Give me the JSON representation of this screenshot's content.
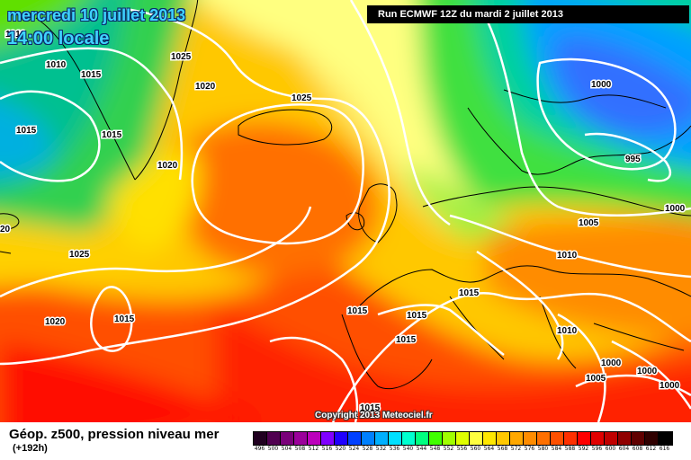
{
  "map_title": {
    "date": "mercredi 10 juillet 2013",
    "time": "14:00 locale"
  },
  "run_info": "Run ECMWF 12Z du mardi 2 juillet 2013",
  "copyright": "Copyright 2013 Meteociel.fr",
  "product": "Géop. z500, pression niveau mer",
  "lead_time": "(+192h)",
  "scale": {
    "labels": [
      "496",
      "500",
      "504",
      "508",
      "512",
      "516",
      "520",
      "524",
      "528",
      "532",
      "536",
      "540",
      "544",
      "548",
      "552",
      "556",
      "560",
      "564",
      "568",
      "572",
      "576",
      "580",
      "584",
      "588",
      "592",
      "596",
      "600",
      "604",
      "608",
      "612",
      "616"
    ],
    "colors": [
      "#200020",
      "#500050",
      "#7a007a",
      "#9b009b",
      "#bc00bc",
      "#8000ff",
      "#2000ff",
      "#0040ff",
      "#0080ff",
      "#00b0ff",
      "#00e0ff",
      "#00ffd0",
      "#00ff80",
      "#40ff00",
      "#a0ff00",
      "#e0ff00",
      "#ffff40",
      "#ffe800",
      "#ffc800",
      "#ffa800",
      "#ff8c00",
      "#ff7000",
      "#ff5000",
      "#ff3000",
      "#ff0000",
      "#e00000",
      "#c00000",
      "#900000",
      "#600000",
      "#300000",
      "#000000"
    ]
  },
  "isobars": [
    {
      "value": "1010",
      "pos": "near Greenland west coast"
    },
    {
      "value": "1015",
      "pos": "south Greenland"
    },
    {
      "value": "1015",
      "pos": "Labrador Sea"
    },
    {
      "value": "1015",
      "pos": "Denmark Strait"
    },
    {
      "value": "1025",
      "pos": "north of Iceland"
    },
    {
      "value": "1020",
      "pos": "northwest of Iceland"
    },
    {
      "value": "1025",
      "pos": "Iceland"
    },
    {
      "value": "1020",
      "pos": "south of Greenland"
    },
    {
      "value": "1025",
      "pos": "mid Atlantic"
    },
    {
      "value": "1020",
      "pos": "western Atlantic"
    },
    {
      "value": "1015",
      "pos": "Azores"
    },
    {
      "value": "1015",
      "pos": "Iberia north"
    },
    {
      "value": "1015",
      "pos": "France"
    },
    {
      "value": "1015",
      "pos": "Iberia"
    },
    {
      "value": "1015",
      "pos": "Alps"
    },
    {
      "value": "1015",
      "pos": "Mediterranean"
    },
    {
      "value": "1000",
      "pos": "northern Russia"
    },
    {
      "value": "995",
      "pos": "Finland"
    },
    {
      "value": "1000",
      "pos": "east Russia"
    },
    {
      "value": "1005",
      "pos": "Baltic"
    },
    {
      "value": "1010",
      "pos": "central Europe"
    },
    {
      "value": "1010",
      "pos": "Balkans"
    },
    {
      "value": "1005",
      "pos": "Turkey"
    },
    {
      "value": "1000",
      "pos": "Black Sea"
    },
    {
      "value": "1000",
      "pos": "Caucasus"
    },
    {
      "value": "1000",
      "pos": "Caspian"
    },
    {
      "value": "20",
      "pos": "left edge"
    },
    {
      "value": "1010",
      "pos": "top left corner"
    }
  ]
}
